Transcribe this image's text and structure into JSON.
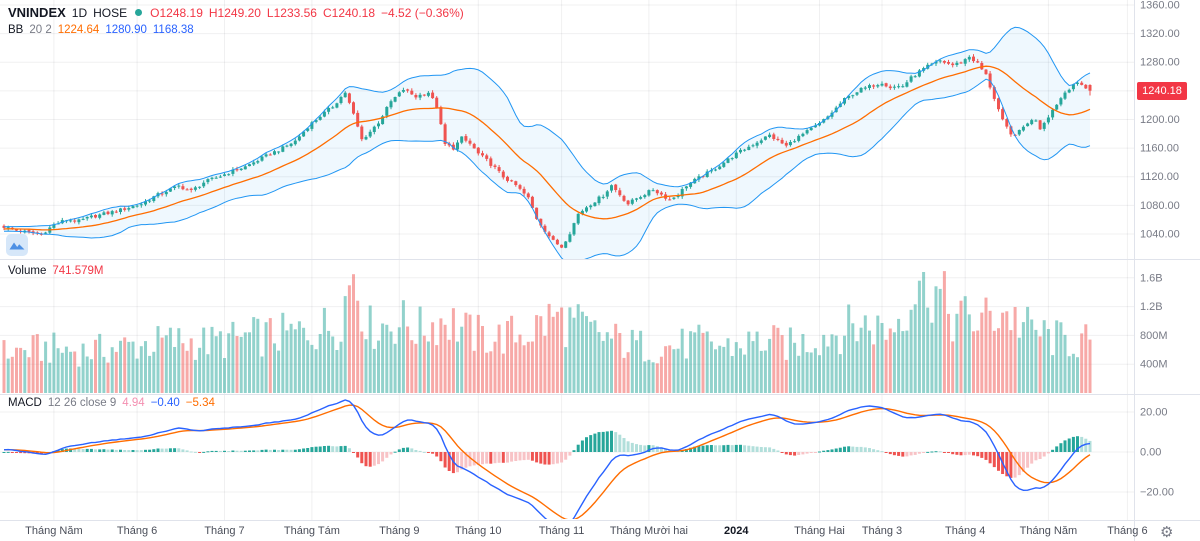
{
  "header": {
    "symbol": "VNINDEX",
    "interval": "1D",
    "exchange": "HOSE",
    "market_status": "open",
    "ohlc": {
      "open": "O1248.19",
      "high": "H1249.20",
      "low": "L1233.56",
      "close": "C1240.18",
      "change": "−4.52 (−0.36%)"
    },
    "bb": {
      "label": "BB",
      "params": "20 2",
      "basis": "1224.64",
      "upper": "1280.90",
      "lower": "1168.38"
    }
  },
  "panes": {
    "volume": {
      "label": "Volume",
      "value": "741.579M"
    },
    "macd": {
      "label": "MACD",
      "params": "12 26 close 9",
      "hist": "4.94",
      "macd": "−0.40",
      "signal": "−5.34"
    }
  },
  "price_axis": {
    "last_price": "1240.18"
  },
  "icons": {
    "settings": "⚙"
  },
  "colors": {
    "up": "#26a69a",
    "down": "#ef5350",
    "bb_band": "#2196f3",
    "bb_fill": "rgba(33,150,243,0.07)",
    "bb_basis": "#ff6d00",
    "macd_line": "#2962ff",
    "macd_signal": "#ff6d00",
    "hist_up": "#26a69a",
    "hist_up_fade": "#b2dfdb",
    "hist_dn": "#ef5350",
    "hist_dn_fade": "#f8c3c6",
    "badge_bg": "#f23645",
    "grid": "rgba(42,46,57,0.07)",
    "separator": "#e0e3eb",
    "axis_text": "#787b86",
    "time_text": "#4a4e59",
    "text": "#131722"
  },
  "chart_data": [
    {
      "type": "candlestick",
      "name": "VNINDEX 1D HOSE",
      "n": 262,
      "y_axis": {
        "range": [
          1015,
          1365
        ],
        "ticks": [
          {
            "v": 1360,
            "label": "1360.00"
          },
          {
            "v": 1320,
            "label": "1320.00"
          },
          {
            "v": 1280,
            "label": "1280.00"
          },
          {
            "v": 1240,
            "label": "1240.00"
          },
          {
            "v": 1200,
            "label": "1200.00"
          },
          {
            "v": 1160,
            "label": "1160.00"
          },
          {
            "v": 1120,
            "label": "1120.00"
          },
          {
            "v": 1080,
            "label": "1080.00"
          },
          {
            "v": 1040,
            "label": "1040.00"
          }
        ]
      },
      "x_labels": [
        {
          "i": 12,
          "label": "Tháng Năm",
          "bold": false
        },
        {
          "i": 32,
          "label": "Tháng 6",
          "bold": false
        },
        {
          "i": 53,
          "label": "Tháng 7",
          "bold": false
        },
        {
          "i": 74,
          "label": "Tháng Tám",
          "bold": false
        },
        {
          "i": 95,
          "label": "Tháng 9",
          "bold": false
        },
        {
          "i": 114,
          "label": "Tháng 10",
          "bold": false
        },
        {
          "i": 134,
          "label": "Tháng 11",
          "bold": false
        },
        {
          "i": 155,
          "label": "Tháng Mười hai",
          "bold": false
        },
        {
          "i": 176,
          "label": "2024",
          "bold": true
        },
        {
          "i": 196,
          "label": "Tháng Hai",
          "bold": false
        },
        {
          "i": 211,
          "label": "Tháng 3",
          "bold": false
        },
        {
          "i": 231,
          "label": "Tháng 4",
          "bold": false
        },
        {
          "i": 251,
          "label": "Tháng Năm",
          "bold": false
        },
        {
          "i": 270,
          "label": "Tháng 6",
          "bold": false
        }
      ],
      "close_anchors": [
        [
          0,
          1050
        ],
        [
          3,
          1045
        ],
        [
          6,
          1042
        ],
        [
          9,
          1040
        ],
        [
          12,
          1053
        ],
        [
          15,
          1060
        ],
        [
          18,
          1058
        ],
        [
          21,
          1064
        ],
        [
          24,
          1068
        ],
        [
          27,
          1072
        ],
        [
          30,
          1077
        ],
        [
          33,
          1082
        ],
        [
          36,
          1092
        ],
        [
          39,
          1100
        ],
        [
          42,
          1107
        ],
        [
          45,
          1100
        ],
        [
          48,
          1112
        ],
        [
          52,
          1121
        ],
        [
          55,
          1128
        ],
        [
          58,
          1134
        ],
        [
          61,
          1143
        ],
        [
          64,
          1152
        ],
        [
          67,
          1160
        ],
        [
          70,
          1170
        ],
        [
          73,
          1190
        ],
        [
          76,
          1205
        ],
        [
          79,
          1218
        ],
        [
          82,
          1238
        ],
        [
          84,
          1207
        ],
        [
          86,
          1172
        ],
        [
          88,
          1183
        ],
        [
          90,
          1196
        ],
        [
          93,
          1225
        ],
        [
          96,
          1242
        ],
        [
          99,
          1232
        ],
        [
          102,
          1238
        ],
        [
          104,
          1218
        ],
        [
          106,
          1165
        ],
        [
          108,
          1160
        ],
        [
          110,
          1174
        ],
        [
          112,
          1166
        ],
        [
          114,
          1152
        ],
        [
          116,
          1143
        ],
        [
          118,
          1132
        ],
        [
          120,
          1120
        ],
        [
          123,
          1108
        ],
        [
          126,
          1090
        ],
        [
          128,
          1062
        ],
        [
          130,
          1045
        ],
        [
          132,
          1030
        ],
        [
          134,
          1022
        ],
        [
          136,
          1042
        ],
        [
          138,
          1068
        ],
        [
          140,
          1078
        ],
        [
          142,
          1086
        ],
        [
          144,
          1094
        ],
        [
          146,
          1108
        ],
        [
          148,
          1095
        ],
        [
          150,
          1082
        ],
        [
          152,
          1090
        ],
        [
          154,
          1096
        ],
        [
          156,
          1102
        ],
        [
          158,
          1095
        ],
        [
          160,
          1088
        ],
        [
          162,
          1095
        ],
        [
          164,
          1108
        ],
        [
          166,
          1115
        ],
        [
          168,
          1122
        ],
        [
          170,
          1128
        ],
        [
          173,
          1140
        ],
        [
          176,
          1152
        ],
        [
          179,
          1162
        ],
        [
          182,
          1172
        ],
        [
          184,
          1178
        ],
        [
          186,
          1170
        ],
        [
          188,
          1163
        ],
        [
          190,
          1172
        ],
        [
          193,
          1183
        ],
        [
          196,
          1194
        ],
        [
          198,
          1204
        ],
        [
          200,
          1216
        ],
        [
          202,
          1228
        ],
        [
          204,
          1236
        ],
        [
          206,
          1242
        ],
        [
          209,
          1248
        ],
        [
          211,
          1252
        ],
        [
          213,
          1245
        ],
        [
          216,
          1247
        ],
        [
          218,
          1258
        ],
        [
          220,
          1267
        ],
        [
          222,
          1274
        ],
        [
          225,
          1282
        ],
        [
          228,
          1276
        ],
        [
          230,
          1280
        ],
        [
          232,
          1288
        ],
        [
          234,
          1278
        ],
        [
          236,
          1262
        ],
        [
          238,
          1230
        ],
        [
          240,
          1198
        ],
        [
          242,
          1178
        ],
        [
          244,
          1183
        ],
        [
          246,
          1196
        ],
        [
          248,
          1200
        ],
        [
          249,
          1188
        ],
        [
          251,
          1205
        ],
        [
          253,
          1222
        ],
        [
          255,
          1238
        ],
        [
          257,
          1250
        ],
        [
          259,
          1248
        ],
        [
          260,
          1245
        ],
        [
          261,
          1240.18
        ]
      ],
      "last_candle": {
        "open": 1248.19,
        "high": 1249.2,
        "low": 1233.56,
        "close": 1240.18,
        "change": -4.52,
        "change_pct": -0.36
      },
      "overlays": [
        {
          "name": "BollingerBands",
          "period": 20,
          "stddev": 2,
          "basis": 1224.64,
          "upper": 1280.9,
          "lower": 1168.38
        }
      ]
    },
    {
      "type": "bar",
      "name": "Volume",
      "unit": "millions",
      "y_axis": {
        "ticks": [
          {
            "v": 1600,
            "label": "1.6B"
          },
          {
            "v": 1200,
            "label": "1.2B"
          },
          {
            "v": 800,
            "label": "800M"
          },
          {
            "v": 400,
            "label": "400M"
          }
        ]
      },
      "anchors": [
        [
          0,
          560
        ],
        [
          10,
          620
        ],
        [
          20,
          580
        ],
        [
          30,
          650
        ],
        [
          40,
          720
        ],
        [
          50,
          700
        ],
        [
          60,
          780
        ],
        [
          70,
          820
        ],
        [
          80,
          950
        ],
        [
          84,
          1650
        ],
        [
          88,
          900
        ],
        [
          95,
          1000
        ],
        [
          100,
          880
        ],
        [
          106,
          1050
        ],
        [
          112,
          820
        ],
        [
          118,
          760
        ],
        [
          126,
          850
        ],
        [
          132,
          1050
        ],
        [
          136,
          980
        ],
        [
          142,
          820
        ],
        [
          150,
          680
        ],
        [
          158,
          620
        ],
        [
          166,
          700
        ],
        [
          174,
          640
        ],
        [
          182,
          720
        ],
        [
          190,
          660
        ],
        [
          198,
          820
        ],
        [
          206,
          950
        ],
        [
          213,
          880
        ],
        [
          221,
          1680
        ],
        [
          228,
          1050
        ],
        [
          235,
          1000
        ],
        [
          240,
          1150
        ],
        [
          246,
          900
        ],
        [
          252,
          760
        ],
        [
          258,
          700
        ],
        [
          261,
          741.579
        ]
      ],
      "spikes": [
        [
          84,
          1650
        ],
        [
          221,
          1680
        ],
        [
          261,
          741.579
        ]
      ],
      "last_value": 741.579
    },
    {
      "type": "macd",
      "name": "MACD",
      "fast": 12,
      "slow": 26,
      "signal_period": 9,
      "source": "close",
      "y_axis": {
        "ticks": [
          {
            "v": 20,
            "label": "20.00"
          },
          {
            "v": 0,
            "label": "0.00"
          },
          {
            "v": -20,
            "label": "−20.00"
          }
        ]
      },
      "last": {
        "histogram": 4.94,
        "macd": -0.4,
        "signal": -5.34
      }
    }
  ]
}
